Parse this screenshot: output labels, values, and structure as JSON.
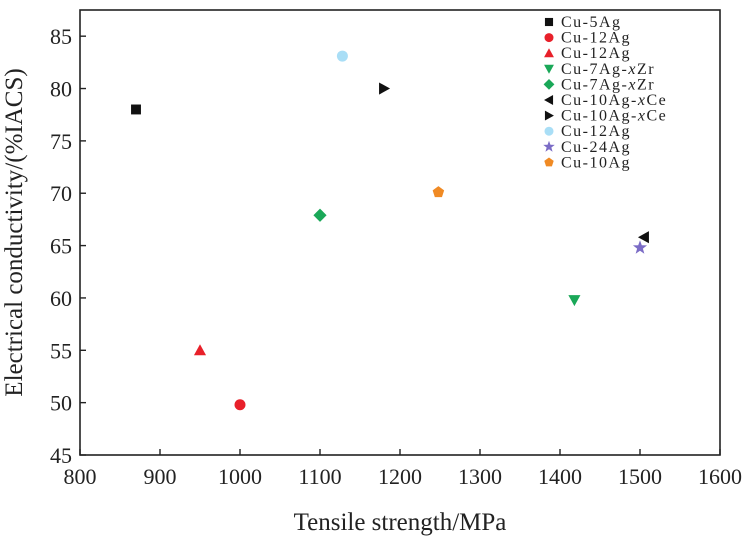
{
  "chart_data": {
    "type": "scatter",
    "title": "",
    "xlabel": "Tensile strength/MPa",
    "ylabel": "Electrical conductivity/(%IACS)",
    "xlim": [
      800,
      1600
    ],
    "ylim": [
      45,
      87.5
    ],
    "xticks": [
      800,
      900,
      1000,
      1100,
      1200,
      1300,
      1400,
      1500,
      1600
    ],
    "yticks": [
      45,
      50,
      55,
      60,
      65,
      70,
      75,
      80,
      85
    ],
    "grid": false,
    "legend_position": "top-right",
    "series": [
      {
        "name": "Cu-5Ag",
        "marker": "square",
        "color": "#111111",
        "points": [
          {
            "x": 870,
            "y": 78
          }
        ]
      },
      {
        "name": "Cu-12Ag",
        "marker": "circle",
        "color": "#e8202a",
        "points": [
          {
            "x": 1000,
            "y": 49.8
          }
        ]
      },
      {
        "name": "Cu-12Ag",
        "marker": "triangle-up",
        "color": "#e8202a",
        "points": [
          {
            "x": 950,
            "y": 55
          }
        ]
      },
      {
        "name": "Cu-7Ag-xZr",
        "italic_part": "x",
        "marker": "triangle-down",
        "color": "#1aa858",
        "points": [
          {
            "x": 1418,
            "y": 59.8
          }
        ]
      },
      {
        "name": "Cu-7Ag-xZr",
        "italic_part": "x",
        "marker": "diamond",
        "color": "#1aa858",
        "points": [
          {
            "x": 1100,
            "y": 67.9
          }
        ]
      },
      {
        "name": "Cu-10Ag-xCe",
        "italic_part": "x",
        "marker": "triangle-left",
        "color": "#111111",
        "points": [
          {
            "x": 1505,
            "y": 65.8
          }
        ]
      },
      {
        "name": "Cu-10Ag-xCe",
        "italic_part": "x",
        "marker": "triangle-right",
        "color": "#111111",
        "points": [
          {
            "x": 1180,
            "y": 80
          }
        ]
      },
      {
        "name": "Cu-12Ag",
        "marker": "circle",
        "color": "#a9def6",
        "points": [
          {
            "x": 1128,
            "y": 83.1
          }
        ]
      },
      {
        "name": "Cu-24Ag",
        "marker": "star",
        "color": "#7b6cc6",
        "points": [
          {
            "x": 1500,
            "y": 64.8
          }
        ]
      },
      {
        "name": "Cu-10Ag",
        "marker": "pentagon",
        "color": "#f08a24",
        "points": [
          {
            "x": 1248,
            "y": 70.1
          }
        ]
      }
    ]
  }
}
